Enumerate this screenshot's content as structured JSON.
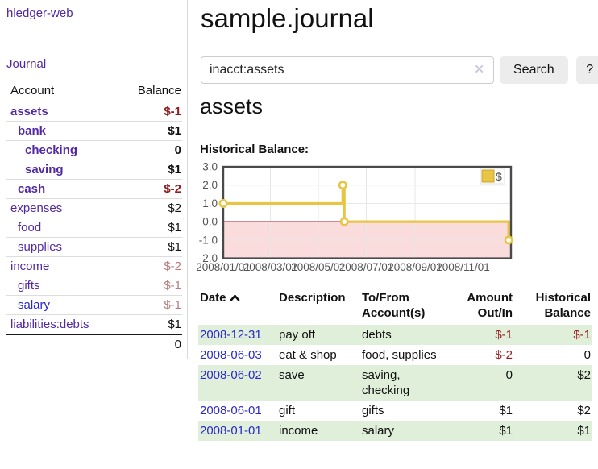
{
  "colors": {
    "purple": "#5229a3",
    "blue": "#2a2acd",
    "negative_strong": "#941b1b",
    "negative_soft": "#b87c7c",
    "row_green": "#e0efda",
    "chart_gold": "#e9c546",
    "chart_negative_fill": "#fbdcdc",
    "chart_zero_line": "#9b1a1a",
    "chart_border": "#4a4a4a",
    "chart_grid": "#e7e7e7",
    "axis_label": "#545454"
  },
  "sidebar": {
    "brand": "hledger-web",
    "journal_label": "Journal",
    "accounts_table": {
      "headers": {
        "account": "Account",
        "balance": "Balance"
      },
      "rows": [
        {
          "name": "assets",
          "balance": "$-1",
          "indent": 1,
          "bold": true,
          "name_style": "purple",
          "balance_style": "neg-strong"
        },
        {
          "name": "bank",
          "balance": "$1",
          "indent": 2,
          "bold": true,
          "name_style": "purple",
          "balance_style": "pos"
        },
        {
          "name": "checking",
          "balance": "0",
          "indent": 3,
          "bold": true,
          "name_style": "purple",
          "balance_style": "pos"
        },
        {
          "name": "saving",
          "balance": "$1",
          "indent": 3,
          "bold": true,
          "name_style": "purple",
          "balance_style": "pos"
        },
        {
          "name": "cash",
          "balance": "$-2",
          "indent": 2,
          "bold": true,
          "name_style": "purple",
          "balance_style": "neg-strong"
        },
        {
          "name": "expenses",
          "balance": "$2",
          "indent": 1,
          "bold": false,
          "name_style": "purple",
          "balance_style": "pos"
        },
        {
          "name": "food",
          "balance": "$1",
          "indent": 2,
          "bold": false,
          "name_style": "purple",
          "balance_style": "pos"
        },
        {
          "name": "supplies",
          "balance": "$1",
          "indent": 2,
          "bold": false,
          "name_style": "purple",
          "balance_style": "pos"
        },
        {
          "name": "income",
          "balance": "$-2",
          "indent": 1,
          "bold": false,
          "name_style": "purple",
          "balance_style": "neg-soft"
        },
        {
          "name": "gifts",
          "balance": "$-1",
          "indent": 2,
          "bold": false,
          "name_style": "purple",
          "balance_style": "neg-soft"
        },
        {
          "name": "salary",
          "balance": "$-1",
          "indent": 2,
          "bold": false,
          "name_style": "blue",
          "balance_style": "neg-soft"
        },
        {
          "name": "liabilities:debts",
          "balance": "$1",
          "indent": 1,
          "bold": false,
          "name_style": "purple",
          "balance_style": "pos"
        }
      ],
      "total": "0"
    }
  },
  "header": {
    "title": "sample.journal"
  },
  "search": {
    "query": "inacct:assets",
    "clear_icon": "✕",
    "button": "Search",
    "help_button": "?"
  },
  "account_page": {
    "heading": "assets",
    "chart_title": "Historical Balance:"
  },
  "chart_data": {
    "type": "line",
    "step": true,
    "title": "Historical Balance:",
    "series": [
      {
        "name": "$",
        "points": [
          {
            "date": "2008-01-01",
            "x": 0.0,
            "y": 1
          },
          {
            "date": "2008-06-01",
            "x": 0.4153,
            "y": 2
          },
          {
            "date": "2008-06-03",
            "x": 0.4208,
            "y": 0
          },
          {
            "date": "2008-12-31",
            "x": 0.992,
            "y": -1
          }
        ]
      }
    ],
    "x_ticks": [
      {
        "pos": 0.0,
        "label": "2008/01/01"
      },
      {
        "pos": 0.1639,
        "label": "2008/03/01"
      },
      {
        "pos": 0.3306,
        "label": "2008/05/01"
      },
      {
        "pos": 0.4973,
        "label": "2008/07/01"
      },
      {
        "pos": 0.6667,
        "label": "2008/09/01"
      },
      {
        "pos": 0.8333,
        "label": "2008/11/01"
      }
    ],
    "y_ticks": [
      3.0,
      2.0,
      1.0,
      0.0,
      -1.0,
      -2.0
    ],
    "ylim": [
      -2,
      3
    ],
    "xlim": [
      0,
      1
    ],
    "legend": {
      "label": "$",
      "position": "top-right"
    },
    "grid": true,
    "negative_region_shaded": true
  },
  "register": {
    "columns": {
      "date": "Date",
      "description": "Description",
      "accounts": "To/From Account(s)",
      "amount": "Amount Out/In",
      "balance": "Historical Balance"
    },
    "sort": {
      "column": "date",
      "direction": "ascending"
    },
    "rows": [
      {
        "date": "2008-12-31",
        "description": "pay off",
        "accounts": "debts",
        "amount": "$-1",
        "balance": "$-1",
        "amount_style": "neg-strong",
        "balance_style": "neg-strong"
      },
      {
        "date": "2008-06-03",
        "description": "eat & shop",
        "accounts": "food, supplies",
        "amount": "$-2",
        "balance": "0",
        "amount_style": "neg-strong",
        "balance_style": "pos"
      },
      {
        "date": "2008-06-02",
        "description": "save",
        "accounts": "saving, checking",
        "amount": "0",
        "balance": "$2",
        "amount_style": "pos",
        "balance_style": "pos"
      },
      {
        "date": "2008-06-01",
        "description": "gift",
        "accounts": "gifts",
        "amount": "$1",
        "balance": "$2",
        "amount_style": "pos",
        "balance_style": "pos"
      },
      {
        "date": "2008-01-01",
        "description": "income",
        "accounts": "salary",
        "amount": "$1",
        "balance": "$1",
        "amount_style": "pos",
        "balance_style": "pos"
      }
    ]
  }
}
